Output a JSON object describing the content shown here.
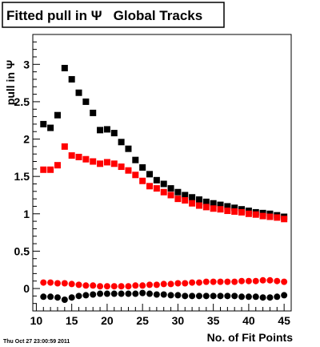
{
  "chart_data": {
    "type": "scatter",
    "title": "Fitted pull in Ψ   Global Tracks",
    "xlabel": "No. of Fit Points",
    "ylabel": "pull in Ψ",
    "xlim": [
      9.5,
      46.0
    ],
    "ylim": [
      -0.3,
      3.4
    ],
    "xticks": [
      10,
      15,
      20,
      25,
      30,
      35,
      40,
      45
    ],
    "yticks": [
      0,
      0.5,
      1,
      1.5,
      2,
      2.5,
      3
    ],
    "xtick_labels": [
      "10",
      "15",
      "20",
      "25",
      "30",
      "35",
      "40",
      "45"
    ],
    "ytick_labels": [
      "0",
      "0.5",
      "1",
      "1.5",
      "2",
      "2.5",
      "3"
    ],
    "grid": false,
    "timestamp": "Thu Oct 27 23:00:59 2011",
    "series": [
      {
        "marker": "square",
        "color": "#000000",
        "x": [
          11,
          12,
          13,
          14,
          15,
          16,
          17,
          18,
          19,
          20,
          21,
          22,
          23,
          24,
          25,
          26,
          27,
          28,
          29,
          30,
          31,
          32,
          33,
          34,
          35,
          36,
          37,
          38,
          39,
          40,
          41,
          42,
          43,
          44,
          45
        ],
        "values": [
          2.2,
          2.15,
          2.32,
          2.95,
          2.8,
          2.62,
          2.5,
          2.35,
          2.12,
          2.13,
          2.08,
          1.96,
          1.87,
          1.72,
          1.62,
          1.53,
          1.45,
          1.4,
          1.34,
          1.29,
          1.25,
          1.22,
          1.19,
          1.16,
          1.14,
          1.12,
          1.1,
          1.08,
          1.06,
          1.04,
          1.02,
          1.01,
          1.0,
          0.98,
          0.96
        ]
      },
      {
        "marker": "square",
        "color": "#ff0000",
        "x": [
          11,
          12,
          13,
          14,
          15,
          16,
          17,
          18,
          19,
          20,
          21,
          22,
          23,
          24,
          25,
          26,
          27,
          28,
          29,
          30,
          31,
          32,
          33,
          34,
          35,
          36,
          37,
          38,
          39,
          40,
          41,
          42,
          43,
          44,
          45
        ],
        "values": [
          1.59,
          1.59,
          1.65,
          1.9,
          1.78,
          1.76,
          1.73,
          1.7,
          1.67,
          1.69,
          1.67,
          1.63,
          1.58,
          1.52,
          1.44,
          1.37,
          1.34,
          1.29,
          1.25,
          1.2,
          1.18,
          1.14,
          1.11,
          1.09,
          1.07,
          1.06,
          1.04,
          1.03,
          1.02,
          1.0,
          0.99,
          0.97,
          0.96,
          0.95,
          0.93
        ]
      },
      {
        "marker": "circle",
        "color": "#ff0000",
        "x": [
          11,
          12,
          13,
          14,
          15,
          16,
          17,
          18,
          19,
          20,
          21,
          22,
          23,
          24,
          25,
          26,
          27,
          28,
          29,
          30,
          31,
          32,
          33,
          34,
          35,
          36,
          37,
          38,
          39,
          40,
          41,
          42,
          43,
          44,
          45
        ],
        "values": [
          0.08,
          0.08,
          0.07,
          0.07,
          0.06,
          0.05,
          0.04,
          0.04,
          0.03,
          0.03,
          0.03,
          0.03,
          0.03,
          0.04,
          0.04,
          0.05,
          0.05,
          0.06,
          0.06,
          0.07,
          0.07,
          0.08,
          0.08,
          0.09,
          0.09,
          0.09,
          0.09,
          0.09,
          0.1,
          0.1,
          0.1,
          0.11,
          0.11,
          0.1,
          0.09
        ]
      },
      {
        "marker": "circle",
        "color": "#000000",
        "x": [
          11,
          12,
          13,
          14,
          15,
          16,
          17,
          18,
          19,
          20,
          21,
          22,
          23,
          24,
          25,
          26,
          27,
          28,
          29,
          30,
          31,
          32,
          33,
          34,
          35,
          36,
          37,
          38,
          39,
          40,
          41,
          42,
          43,
          44,
          45
        ],
        "values": [
          -0.11,
          -0.11,
          -0.12,
          -0.15,
          -0.12,
          -0.1,
          -0.09,
          -0.08,
          -0.07,
          -0.07,
          -0.07,
          -0.07,
          -0.07,
          -0.07,
          -0.06,
          -0.07,
          -0.08,
          -0.08,
          -0.09,
          -0.09,
          -0.1,
          -0.1,
          -0.1,
          -0.1,
          -0.1,
          -0.1,
          -0.1,
          -0.1,
          -0.11,
          -0.11,
          -0.11,
          -0.12,
          -0.12,
          -0.11,
          -0.09
        ]
      }
    ]
  }
}
